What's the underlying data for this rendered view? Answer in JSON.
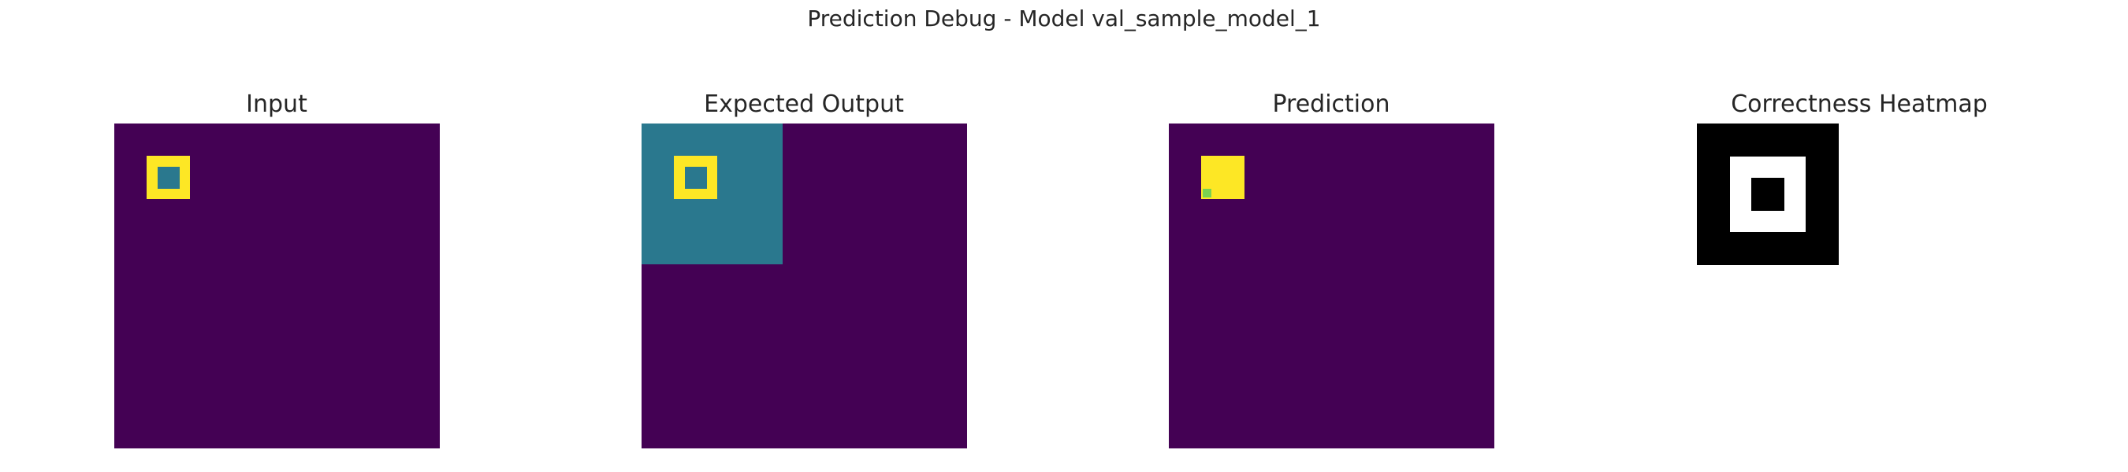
{
  "figure": {
    "suptitle": "Prediction Debug - Model val_sample_model_1"
  },
  "palette": {
    "0": "#440154",
    "1": "#fde725",
    "2": "#2a788e",
    "3": "#7ad151",
    "h0": "#000000",
    "h1": "#ffffff"
  },
  "panels": [
    {
      "id": "input",
      "title": "Input",
      "grid_size": 30,
      "background": "0",
      "rects": [
        {
          "row": 3,
          "col": 3,
          "h": 4,
          "w": 4,
          "value": "1"
        },
        {
          "row": 4,
          "col": 4,
          "h": 2,
          "w": 2,
          "value": "2"
        }
      ]
    },
    {
      "id": "expected",
      "title": "Expected Output",
      "grid_size": 30,
      "background": "0",
      "rects": [
        {
          "row": 0,
          "col": 0,
          "h": 13,
          "w": 13,
          "value": "2"
        },
        {
          "row": 3,
          "col": 3,
          "h": 4,
          "w": 4,
          "value": "1"
        },
        {
          "row": 4,
          "col": 4,
          "h": 2,
          "w": 2,
          "value": "2"
        }
      ]
    },
    {
      "id": "pred",
      "title": "Prediction",
      "grid_size": 30,
      "background": "0",
      "rects": [
        {
          "row": 3,
          "col": 3,
          "h": 4,
          "w": 4,
          "value": "1"
        },
        {
          "row": 6,
          "col": 3.1,
          "h": 0.8,
          "w": 0.8,
          "value": "3",
          "offset": "mid"
        }
      ]
    },
    {
      "id": "heat",
      "title": "Correctness Heatmap",
      "grid_size": 13,
      "background": "h0",
      "rects": [
        {
          "row": 3,
          "col": 3,
          "h": 7,
          "w": 7,
          "value": "h1"
        },
        {
          "row": 5,
          "col": 5,
          "h": 3,
          "w": 3,
          "value": "h0"
        }
      ]
    }
  ]
}
